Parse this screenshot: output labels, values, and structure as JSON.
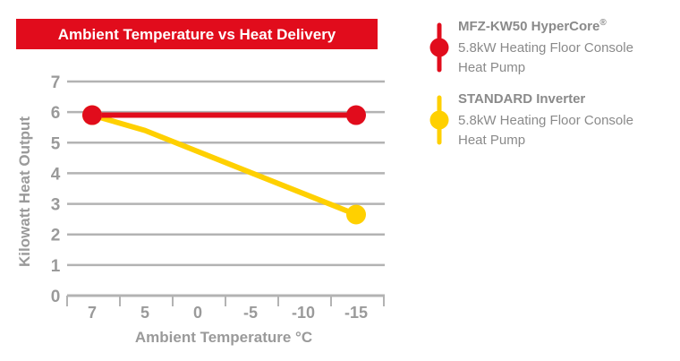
{
  "chart_data": {
    "type": "line",
    "title": "Ambient Temperature vs Heat Delivery",
    "xlabel": "Ambient Temperature °C",
    "ylabel": "Kilowatt Heat Output",
    "categories": [
      "7",
      "5",
      "0",
      "-5",
      "-10",
      "-15"
    ],
    "ylim": [
      0,
      7
    ],
    "yticks": [
      "0",
      "1",
      "2",
      "3",
      "4",
      "5",
      "6",
      "7"
    ],
    "grid": true,
    "legend_position": "right",
    "series": [
      {
        "name": "MFZ-KW50 HyperCore",
        "name_suffix": "®",
        "description_lines": [
          "5.8kW Heating Floor Console",
          "Heat Pump"
        ],
        "color": "#e10c1c",
        "x": [
          7,
          -15
        ],
        "values": [
          5.9,
          5.9
        ]
      },
      {
        "name": "STANDARD Inverter",
        "name_suffix": "",
        "description_lines": [
          "5.8kW Heating Floor Console",
          "Heat Pump"
        ],
        "color": "#ffd000",
        "x": [
          7,
          5,
          -15
        ],
        "values": [
          5.9,
          5.4,
          2.65
        ]
      }
    ]
  },
  "colors": {
    "banner": "#e10c1c",
    "grid": "#b3b3b3",
    "axis_text": "#9a9a9a"
  }
}
